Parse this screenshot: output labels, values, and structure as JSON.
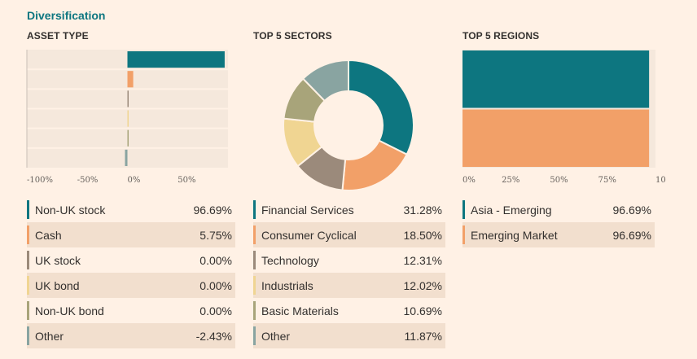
{
  "page": {
    "title": "Diversification"
  },
  "sections": {
    "asset_type": "ASSET TYPE",
    "sectors": "TOP 5 SECTORS",
    "regions": "TOP 5 REGIONS"
  },
  "colors": {
    "teal": "#0d7680",
    "orange": "#f2a068",
    "brown": "#9b8a7b",
    "yellow": "#f0d592",
    "olive": "#a8a47a",
    "gray_teal": "#89a4a1",
    "panel": "#f5e8dc",
    "grid_line": "#fff1e5"
  },
  "chart_data": [
    {
      "type": "bar",
      "orientation": "horizontal",
      "title": "ASSET TYPE",
      "categories": [
        "Non-UK stock",
        "Cash",
        "UK stock",
        "UK bond",
        "Non-UK bond",
        "Other"
      ],
      "values": [
        96.69,
        5.75,
        0.0,
        0.0,
        0.0,
        -2.43
      ],
      "xlim": [
        -100,
        100
      ],
      "xticks": [
        "-100%",
        "-50%",
        "0%",
        "50%"
      ]
    },
    {
      "type": "pie",
      "donut": true,
      "title": "TOP 5 SECTORS",
      "categories": [
        "Financial Services",
        "Consumer Cyclical",
        "Technology",
        "Industrials",
        "Basic Materials",
        "Other"
      ],
      "values": [
        31.28,
        18.5,
        12.31,
        12.02,
        10.69,
        11.87
      ]
    },
    {
      "type": "bar",
      "orientation": "horizontal",
      "title": "TOP 5 REGIONS",
      "categories": [
        "Asia - Emerging",
        "Emerging Market"
      ],
      "values": [
        96.69,
        96.69
      ],
      "xlim": [
        0,
        100
      ],
      "xticks": [
        "0%",
        "25%",
        "50%",
        "75%",
        "10"
      ]
    }
  ],
  "tables": {
    "asset_type": [
      {
        "label": "Non-UK stock",
        "value": "96.69%"
      },
      {
        "label": "Cash",
        "value": "5.75%"
      },
      {
        "label": "UK stock",
        "value": "0.00%"
      },
      {
        "label": "UK bond",
        "value": "0.00%"
      },
      {
        "label": "Non-UK bond",
        "value": "0.00%"
      },
      {
        "label": "Other",
        "value": "-2.43%"
      }
    ],
    "sectors": [
      {
        "label": "Financial Services",
        "value": "31.28%"
      },
      {
        "label": "Consumer Cyclical",
        "value": "18.50%"
      },
      {
        "label": "Technology",
        "value": "12.31%"
      },
      {
        "label": "Industrials",
        "value": "12.02%"
      },
      {
        "label": "Basic Materials",
        "value": "10.69%"
      },
      {
        "label": "Other",
        "value": "11.87%"
      }
    ],
    "regions": [
      {
        "label": "Asia - Emerging",
        "value": "96.69%"
      },
      {
        "label": "Emerging Market",
        "value": "96.69%"
      }
    ]
  }
}
